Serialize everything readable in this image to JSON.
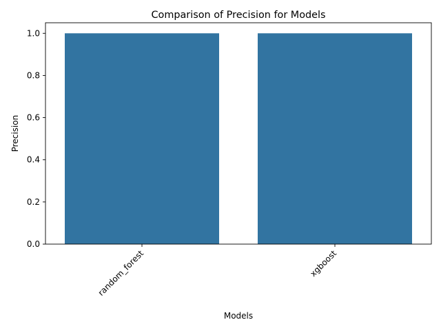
{
  "chart_data": {
    "type": "bar",
    "title": "Comparison of Precision for Models",
    "xlabel": "Models",
    "ylabel": "Precision",
    "categories": [
      "random_forest",
      "xgboost"
    ],
    "values": [
      1.0,
      1.0
    ],
    "ylim": [
      0,
      1.05
    ],
    "yticks": [
      "0.0",
      "0.2",
      "0.4",
      "0.6",
      "0.8",
      "1.0"
    ],
    "grid": false,
    "legend": "none",
    "x_tick_rotation_deg": 45,
    "bar_color": "#3274a1"
  }
}
